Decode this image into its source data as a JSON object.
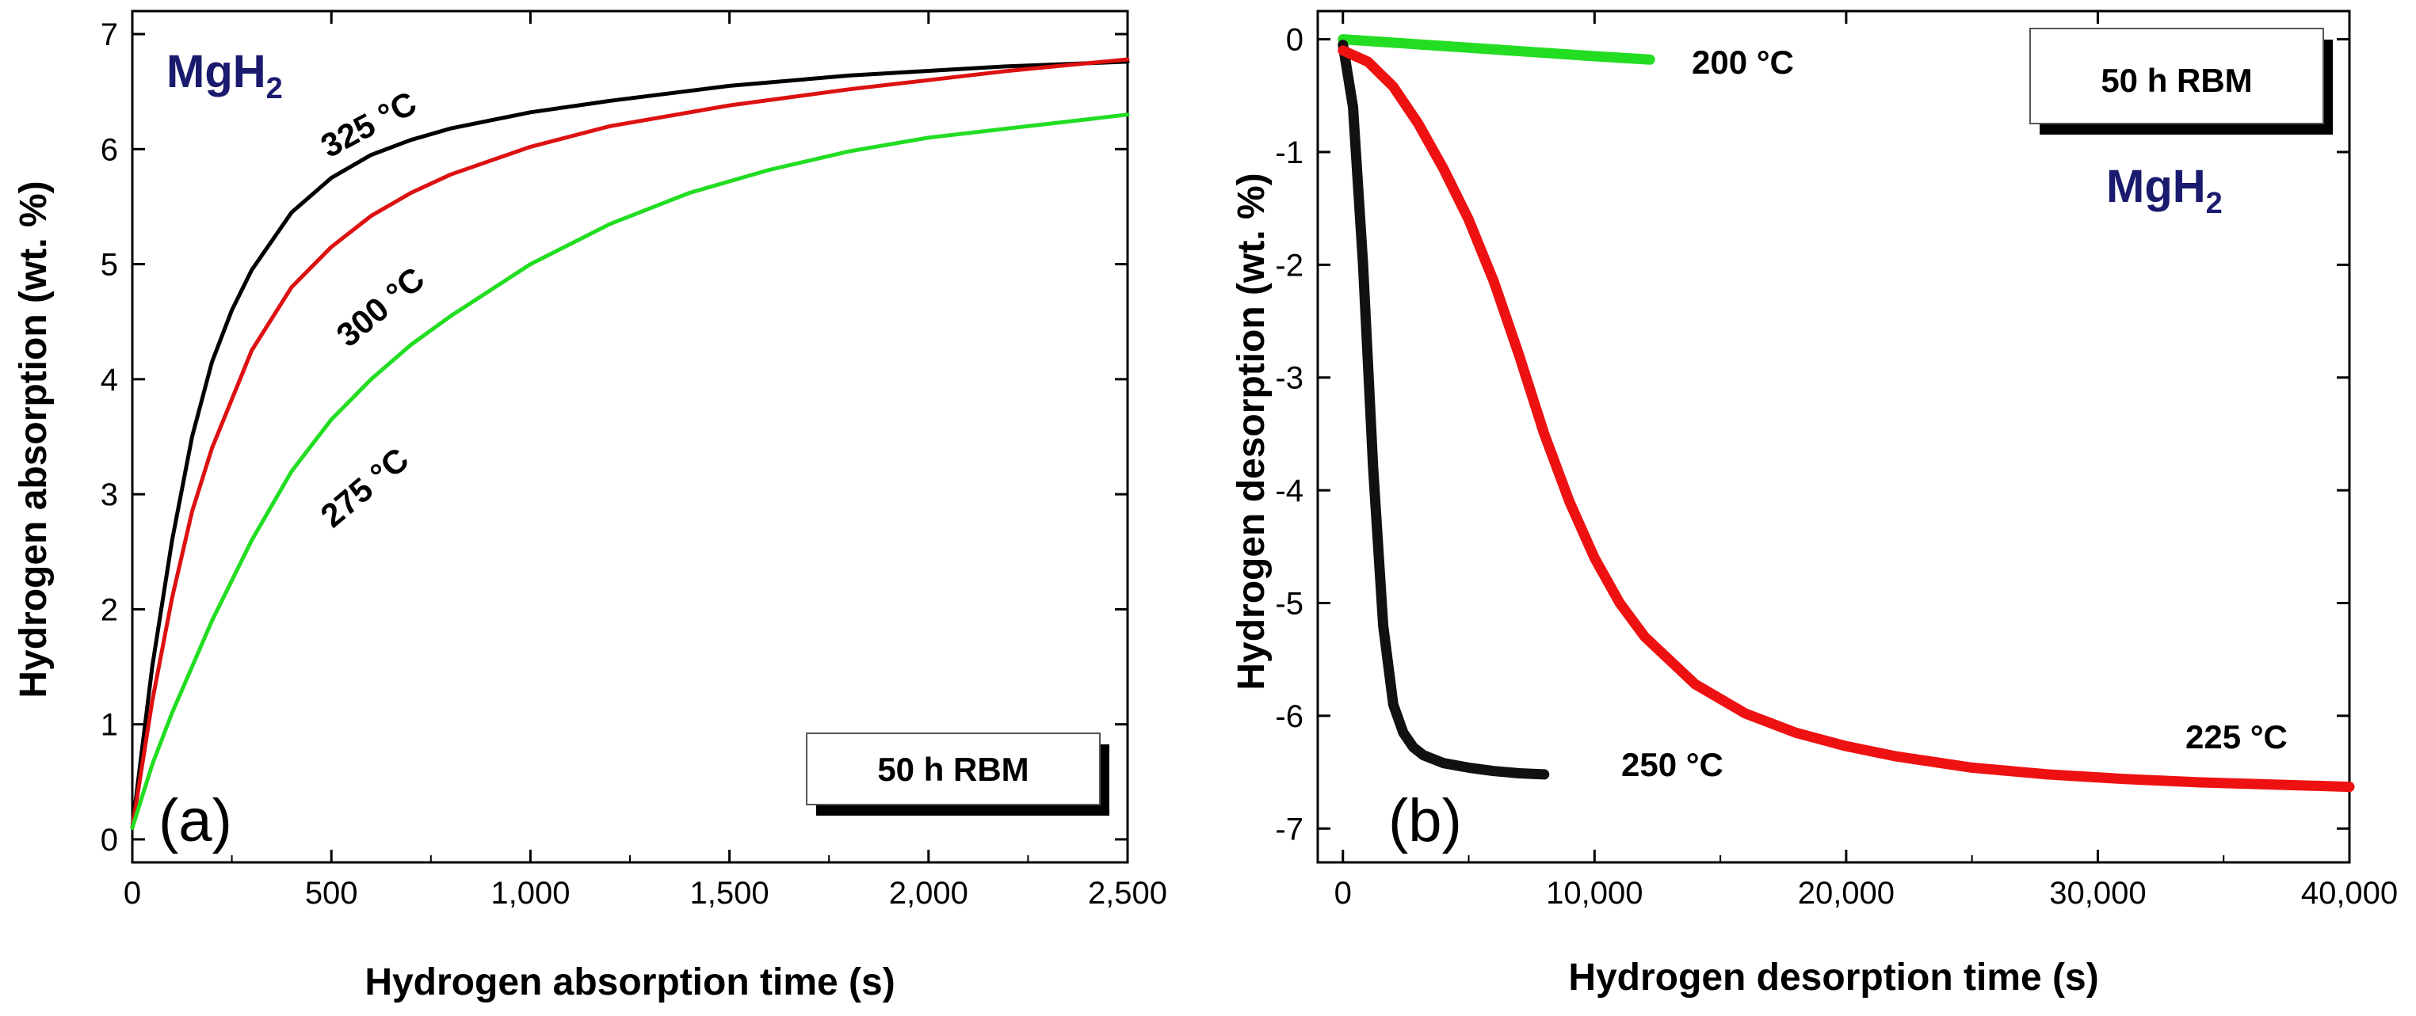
{
  "chart_data": [
    {
      "panel": "(a)",
      "type": "line",
      "compound": "MgH",
      "compound_subscript": "2",
      "box_label": "50 h RBM",
      "xlabel": "Hydrogen absorption time (s)",
      "ylabel": "Hydrogen absorption (wt. %)",
      "xlim": [
        0,
        2500
      ],
      "ylim": [
        -0.2,
        7.2
      ],
      "xticks": [
        0,
        500,
        1000,
        1500,
        2000,
        2500
      ],
      "xtick_labels": [
        "0",
        "500",
        "1,000",
        "1,500",
        "2,000",
        "2,500"
      ],
      "yticks": [
        0,
        1,
        2,
        3,
        4,
        5,
        6,
        7
      ],
      "ytick_labels": [
        "0",
        "1",
        "2",
        "3",
        "4",
        "5",
        "6",
        "7"
      ],
      "series": [
        {
          "name": "325 °C",
          "label_text": "325 °C",
          "color": "#000000",
          "x": [
            0,
            50,
            100,
            150,
            200,
            250,
            300,
            400,
            500,
            600,
            700,
            800,
            1000,
            1200,
            1500,
            1800,
            2000,
            2200,
            2500
          ],
          "y": [
            0.1,
            1.5,
            2.6,
            3.5,
            4.15,
            4.6,
            4.95,
            5.45,
            5.75,
            5.95,
            6.08,
            6.18,
            6.32,
            6.42,
            6.55,
            6.64,
            6.68,
            6.72,
            6.76
          ]
        },
        {
          "name": "300 °C",
          "label_text": "300 °C",
          "color": "#dd1111",
          "x": [
            0,
            50,
            100,
            150,
            200,
            300,
            400,
            500,
            600,
            700,
            800,
            1000,
            1200,
            1500,
            1800,
            2000,
            2200,
            2500
          ],
          "y": [
            0.1,
            1.2,
            2.1,
            2.85,
            3.4,
            4.25,
            4.8,
            5.15,
            5.42,
            5.62,
            5.78,
            6.02,
            6.2,
            6.38,
            6.52,
            6.6,
            6.68,
            6.78
          ]
        },
        {
          "name": "275 °C",
          "label_text": "275 °C",
          "color": "#22dd22",
          "x": [
            0,
            50,
            100,
            200,
            300,
            400,
            500,
            600,
            700,
            800,
            1000,
            1200,
            1400,
            1600,
            1800,
            2000,
            2200,
            2400,
            2500
          ],
          "y": [
            0.1,
            0.65,
            1.1,
            1.9,
            2.6,
            3.2,
            3.65,
            4.0,
            4.3,
            4.55,
            5.0,
            5.35,
            5.62,
            5.82,
            5.98,
            6.1,
            6.18,
            6.26,
            6.3
          ]
        }
      ]
    },
    {
      "panel": "(b)",
      "type": "line",
      "compound": "MgH",
      "compound_subscript": "2",
      "box_label": "50 h RBM",
      "xlabel": "Hydrogen desorption time (s)",
      "ylabel": "Hydrogen desorption (wt. %)",
      "xlim": [
        -1000,
        40000
      ],
      "ylim": [
        -7.3,
        0.25
      ],
      "xticks": [
        0,
        10000,
        20000,
        30000,
        40000
      ],
      "xtick_labels": [
        "0",
        "10,000",
        "20,000",
        "30,000",
        "40,000"
      ],
      "yticks": [
        0,
        -1,
        -2,
        -3,
        -4,
        -5,
        -6,
        -7
      ],
      "ytick_labels": [
        "0",
        "-1",
        "-2",
        "-3",
        "-4",
        "-5",
        "-6",
        "-7"
      ],
      "series": [
        {
          "name": "200 °C",
          "label_text": "200 °C",
          "color": "#22dd22",
          "x": [
            0,
            2000,
            4000,
            6000,
            8000,
            10000,
            12200
          ],
          "y": [
            0,
            -0.03,
            -0.06,
            -0.09,
            -0.12,
            -0.15,
            -0.18
          ]
        },
        {
          "name": "250 °C",
          "label_text": "250 °C",
          "color": "#111111",
          "x": [
            0,
            400,
            800,
            1200,
            1600,
            2000,
            2400,
            2800,
            3200,
            4000,
            5000,
            6000,
            7000,
            8000
          ],
          "y": [
            -0.05,
            -0.6,
            -2.0,
            -3.8,
            -5.2,
            -5.9,
            -6.15,
            -6.28,
            -6.35,
            -6.42,
            -6.46,
            -6.49,
            -6.51,
            -6.52
          ]
        },
        {
          "name": "225 °C",
          "label_text": "225 °C",
          "color": "#ee1111",
          "x": [
            0,
            1000,
            2000,
            3000,
            4000,
            5000,
            6000,
            7000,
            8000,
            9000,
            10000,
            11000,
            12000,
            14000,
            16000,
            18000,
            20000,
            22000,
            25000,
            28000,
            31000,
            34000,
            37000,
            40000
          ],
          "y": [
            -0.1,
            -0.2,
            -0.42,
            -0.75,
            -1.15,
            -1.6,
            -2.15,
            -2.8,
            -3.5,
            -4.1,
            -4.6,
            -5.0,
            -5.3,
            -5.72,
            -5.98,
            -6.15,
            -6.27,
            -6.36,
            -6.46,
            -6.52,
            -6.56,
            -6.59,
            -6.61,
            -6.63
          ]
        }
      ]
    }
  ]
}
